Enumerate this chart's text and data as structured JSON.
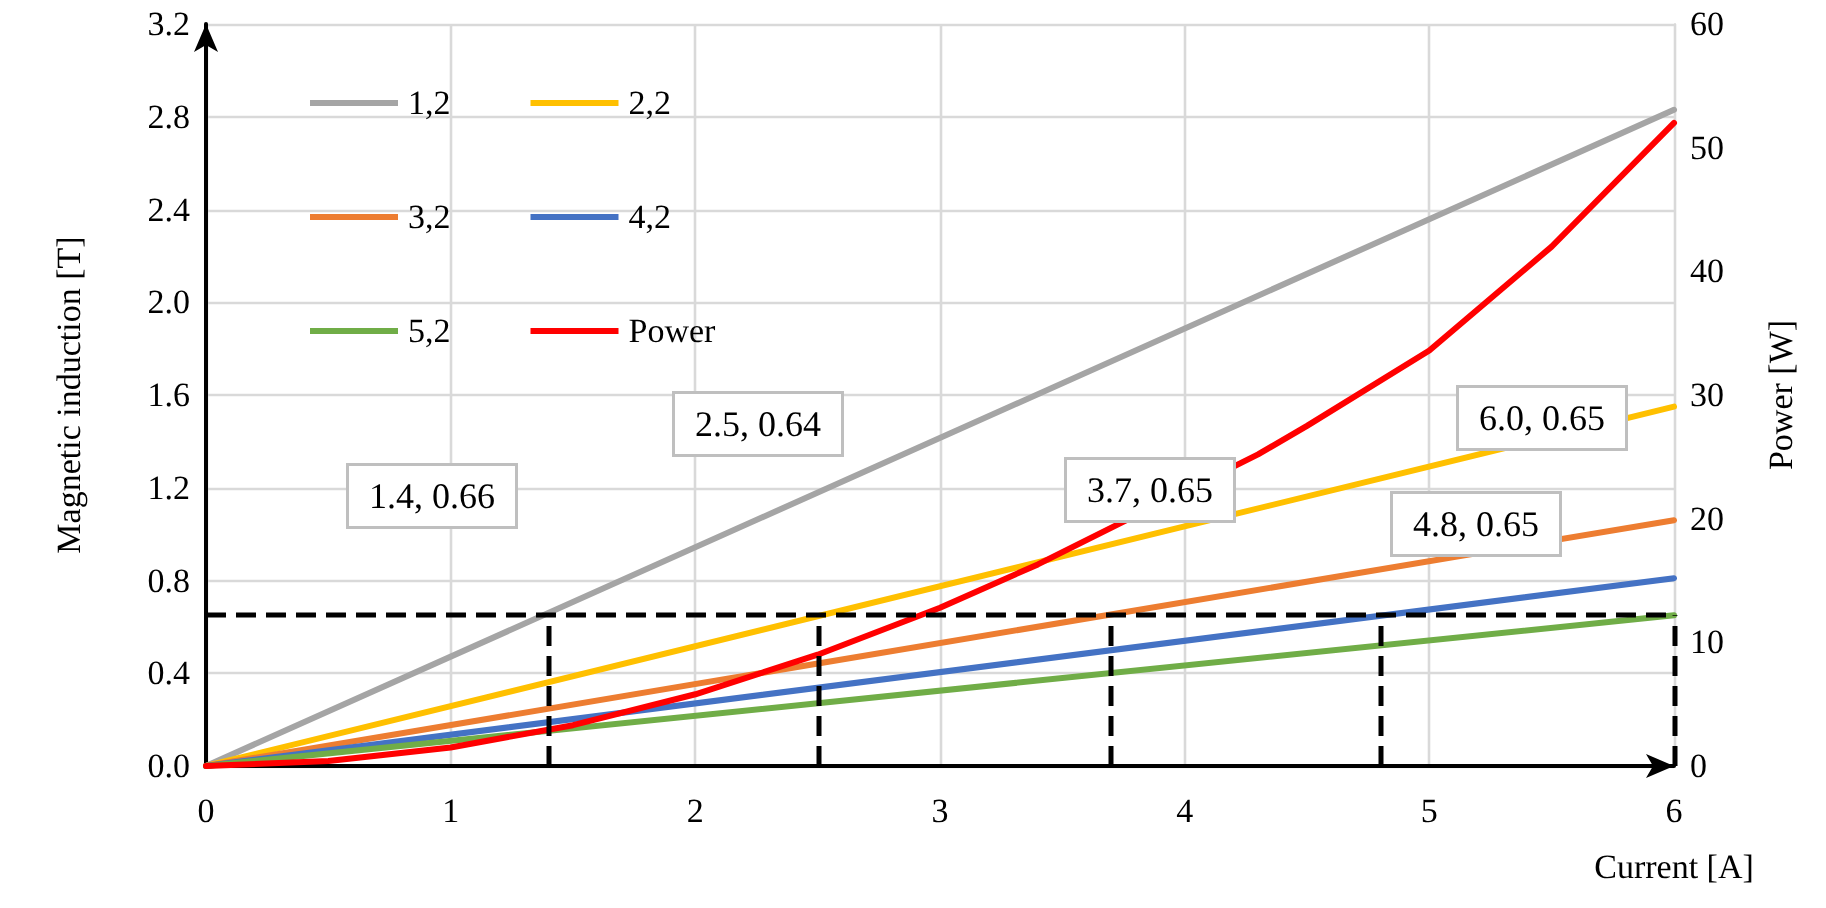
{
  "chart_data": {
    "type": "line",
    "xlabel": "Current [A]",
    "ylabel": "Magnetic induction [T]",
    "y2label": "Power [W]",
    "x": [
      0,
      6
    ],
    "series": [
      {
        "name": "1,2",
        "color": "#a5a5a5",
        "values": [
          0,
          2.83
        ]
      },
      {
        "name": "2,2",
        "color": "#ffc000",
        "values": [
          0,
          1.55
        ]
      },
      {
        "name": "3,2",
        "color": "#ed7d31",
        "values": [
          0,
          1.06
        ]
      },
      {
        "name": "4,2",
        "color": "#4472c4",
        "values": [
          0,
          0.81
        ]
      },
      {
        "name": "5,2",
        "color": "#70ad47",
        "values": [
          0,
          0.65
        ]
      },
      {
        "name": "Power",
        "color": "#ff0000",
        "axis": "y2",
        "x": [
          0,
          0.5,
          1,
          1.5,
          2,
          2.5,
          3,
          3.4,
          4.3,
          4.5,
          5,
          5.5,
          6
        ],
        "values": [
          0,
          0.4,
          1.5,
          3.3,
          5.8,
          9,
          12.8,
          16.3,
          25.2,
          27.5,
          33.6,
          42,
          52
        ]
      }
    ],
    "xlim": [
      0,
      6
    ],
    "xticks": [
      0,
      1,
      2,
      3,
      4,
      5,
      6
    ],
    "ylim": [
      0,
      3.2
    ],
    "yticks": [
      {
        "value": 0,
        "label": "0.0"
      },
      {
        "value": 0.4,
        "label": "0.4"
      },
      {
        "value": 0.8,
        "label": "0.8"
      },
      {
        "value": 1.2,
        "label": "1.2"
      },
      {
        "value": 1.6,
        "label": "1.6"
      },
      {
        "value": 2,
        "label": "2.0"
      },
      {
        "value": 2.4,
        "label": "2.4"
      },
      {
        "value": 2.8,
        "label": "2.8"
      },
      {
        "value": 3.2,
        "label": "3.2"
      }
    ],
    "y2lim": [
      0,
      60
    ],
    "y2ticks": [
      0,
      10,
      20,
      30,
      40,
      50,
      60
    ],
    "ref_lines": [
      {
        "axis": "y",
        "value": 0.65,
        "color": "#000000",
        "line_style": "dashed"
      },
      {
        "axis": "x",
        "value": 1.4,
        "color": "#000000",
        "line_style": "dashed"
      },
      {
        "axis": "x",
        "value": 2.5,
        "color": "#000000",
        "line_style": "dashed"
      },
      {
        "axis": "x",
        "value": 3.7,
        "color": "#000000",
        "line_style": "dashed"
      },
      {
        "axis": "x",
        "value": 4.8,
        "color": "#000000",
        "line_style": "dashed"
      },
      {
        "axis": "x",
        "value": 6,
        "color": "#000000",
        "line_style": "dashed"
      }
    ],
    "annotations": [
      "1.4, 0.66",
      "2.5, 0.64",
      "3.7, 0.65",
      "4.8, 0.65",
      "6.0, 0.65"
    ],
    "grid": true,
    "legend": "top left",
    "marker": "none",
    "line_style": "solid"
  }
}
